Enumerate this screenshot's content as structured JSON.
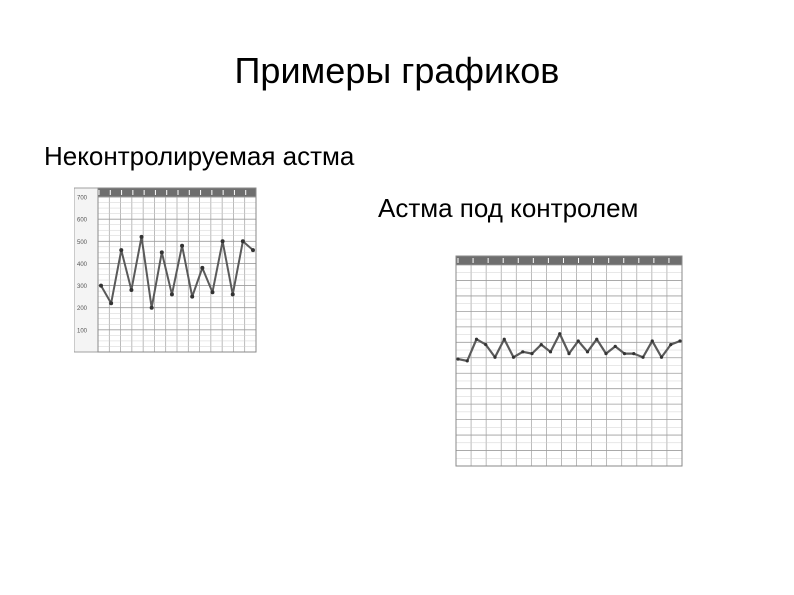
{
  "slide": {
    "title": "Примеры графиков",
    "label_uncontrolled": "Неконтролируемая астма",
    "label_controlled": "Астма под контролем"
  },
  "colors": {
    "grid": "#9e9e9e",
    "grid_light": "#d0d0d0",
    "line": "#5a5a5a",
    "header": "#6e6e6e",
    "frame": "#8a8a8a"
  },
  "chart_data": [
    {
      "type": "line",
      "series": [
        {
          "values": [
            300,
            220,
            460,
            280,
            520,
            200,
            450,
            260,
            480,
            250,
            380,
            270,
            500,
            260,
            500,
            460
          ]
        }
      ],
      "ylim": [
        0,
        700
      ],
      "yticks": [
        "700",
        "600",
        "500",
        "400",
        "300",
        "200",
        "100"
      ],
      "grid": true
    },
    {
      "type": "line",
      "series": [
        {
          "values": [
            0.52,
            0.53,
            0.41,
            0.44,
            0.51,
            0.41,
            0.51,
            0.48,
            0.49,
            0.44,
            0.48,
            0.38,
            0.49,
            0.42,
            0.48,
            0.41,
            0.49,
            0.45,
            0.49,
            0.49,
            0.51,
            0.42,
            0.51,
            0.44,
            0.42
          ]
        }
      ],
      "grid": true
    }
  ]
}
